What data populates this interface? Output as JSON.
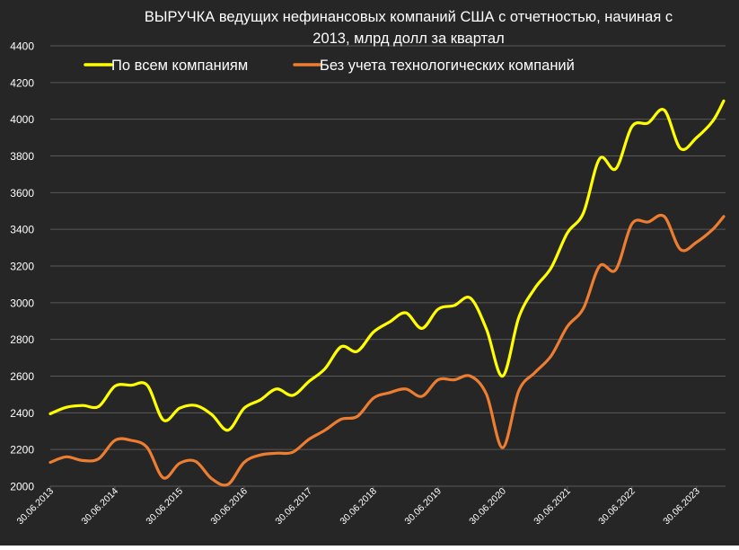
{
  "chart_data": {
    "type": "line",
    "title_line1": "ВЫРУЧКА ведущих нефинансовых компаний США с отчетностью, начиная с",
    "title_line2": "2013, млрд долл за квартал",
    "xlabel": "",
    "ylabel": "",
    "ylim": [
      2000,
      4400
    ],
    "yticks": [
      2000,
      2200,
      2400,
      2600,
      2800,
      3000,
      3200,
      3400,
      3600,
      3800,
      4000,
      4200,
      4400
    ],
    "xlim": [
      2013.5,
      2023.92
    ],
    "xticks": [
      {
        "label": "30.06.2013",
        "x": 2013.5
      },
      {
        "label": "30.06.2014",
        "x": 2014.5
      },
      {
        "label": "30.06.2015",
        "x": 2015.5
      },
      {
        "label": "30.06.2016",
        "x": 2016.5
      },
      {
        "label": "30.06.2017",
        "x": 2017.5
      },
      {
        "label": "30.06.2018",
        "x": 2018.5
      },
      {
        "label": "30.06.2019",
        "x": 2019.5
      },
      {
        "label": "30.06.2020",
        "x": 2020.5
      },
      {
        "label": "30.06.2021",
        "x": 2021.5
      },
      {
        "label": "30.06.2022",
        "x": 2022.5
      },
      {
        "label": "30.06.2023",
        "x": 2023.5
      }
    ],
    "grid": true,
    "legend_position": "top",
    "background": "#262626",
    "grid_color": "#595959",
    "text_color": "#ffffff",
    "series": [
      {
        "name": "По всем компаниям",
        "color": "#ffff00",
        "points": [
          [
            2013.5,
            2395
          ],
          [
            2013.75,
            2430
          ],
          [
            2014.0,
            2440
          ],
          [
            2014.25,
            2435
          ],
          [
            2014.5,
            2545
          ],
          [
            2014.75,
            2550
          ],
          [
            2015.0,
            2550
          ],
          [
            2015.25,
            2360
          ],
          [
            2015.5,
            2425
          ],
          [
            2015.75,
            2440
          ],
          [
            2016.0,
            2390
          ],
          [
            2016.25,
            2305
          ],
          [
            2016.5,
            2425
          ],
          [
            2016.75,
            2470
          ],
          [
            2017.0,
            2530
          ],
          [
            2017.25,
            2495
          ],
          [
            2017.5,
            2570
          ],
          [
            2017.75,
            2640
          ],
          [
            2018.0,
            2760
          ],
          [
            2018.25,
            2735
          ],
          [
            2018.5,
            2840
          ],
          [
            2018.75,
            2895
          ],
          [
            2019.0,
            2945
          ],
          [
            2019.25,
            2860
          ],
          [
            2019.5,
            2965
          ],
          [
            2019.75,
            2985
          ],
          [
            2020.0,
            3025
          ],
          [
            2020.25,
            2855
          ],
          [
            2020.5,
            2600
          ],
          [
            2020.75,
            2920
          ],
          [
            2021.0,
            3080
          ],
          [
            2021.25,
            3190
          ],
          [
            2021.5,
            3380
          ],
          [
            2021.75,
            3490
          ],
          [
            2022.0,
            3785
          ],
          [
            2022.25,
            3730
          ],
          [
            2022.5,
            3960
          ],
          [
            2022.75,
            3980
          ],
          [
            2023.0,
            4050
          ],
          [
            2023.25,
            3840
          ],
          [
            2023.5,
            3900
          ],
          [
            2023.75,
            3990
          ],
          [
            2023.92,
            4100
          ]
        ]
      },
      {
        "name": "Без учета технологических компаний",
        "color": "#ed7d31",
        "points": [
          [
            2013.5,
            2130
          ],
          [
            2013.75,
            2160
          ],
          [
            2014.0,
            2140
          ],
          [
            2014.25,
            2150
          ],
          [
            2014.5,
            2250
          ],
          [
            2014.75,
            2250
          ],
          [
            2015.0,
            2210
          ],
          [
            2015.25,
            2045
          ],
          [
            2015.5,
            2125
          ],
          [
            2015.75,
            2135
          ],
          [
            2016.0,
            2040
          ],
          [
            2016.25,
            2010
          ],
          [
            2016.5,
            2130
          ],
          [
            2016.75,
            2170
          ],
          [
            2017.0,
            2180
          ],
          [
            2017.25,
            2185
          ],
          [
            2017.5,
            2255
          ],
          [
            2017.75,
            2305
          ],
          [
            2018.0,
            2365
          ],
          [
            2018.25,
            2380
          ],
          [
            2018.5,
            2480
          ],
          [
            2018.75,
            2510
          ],
          [
            2019.0,
            2530
          ],
          [
            2019.25,
            2490
          ],
          [
            2019.5,
            2580
          ],
          [
            2019.75,
            2580
          ],
          [
            2020.0,
            2600
          ],
          [
            2020.25,
            2500
          ],
          [
            2020.5,
            2210
          ],
          [
            2020.75,
            2520
          ],
          [
            2021.0,
            2620
          ],
          [
            2021.25,
            2710
          ],
          [
            2021.5,
            2870
          ],
          [
            2021.75,
            2970
          ],
          [
            2022.0,
            3200
          ],
          [
            2022.25,
            3180
          ],
          [
            2022.5,
            3430
          ],
          [
            2022.75,
            3440
          ],
          [
            2023.0,
            3470
          ],
          [
            2023.25,
            3290
          ],
          [
            2023.5,
            3330
          ],
          [
            2023.75,
            3400
          ],
          [
            2023.92,
            3470
          ]
        ]
      }
    ]
  }
}
